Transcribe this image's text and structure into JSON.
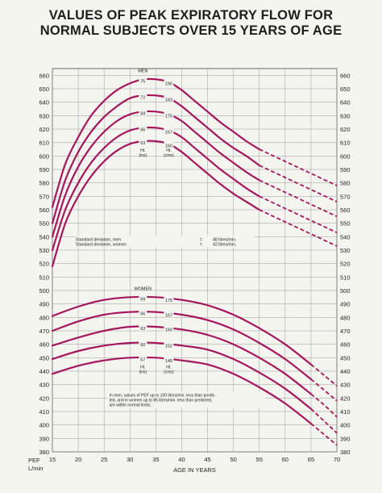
{
  "title_line1": "VALUES OF PEAK EXPIRATORY FLOW FOR",
  "title_line2": "NORMAL SUBJECTS OVER 15 YEARS OF AGE",
  "colors": {
    "curve": "#a4175e",
    "grid": "#9a9a9a",
    "text": "#222222",
    "background": "#f5f5f0"
  },
  "chart_data": {
    "type": "line",
    "xlabel": "AGE IN YEARS",
    "ylabel": [
      "PEF",
      "L/min"
    ],
    "xlim": [
      15,
      70
    ],
    "ylim": [
      380,
      665
    ],
    "x_ticks": [
      15,
      20,
      25,
      30,
      35,
      40,
      45,
      50,
      55,
      60,
      65,
      70
    ],
    "y_ticks": [
      380,
      390,
      400,
      410,
      420,
      430,
      440,
      450,
      460,
      470,
      480,
      490,
      500,
      510,
      520,
      530,
      540,
      550,
      560,
      570,
      580,
      590,
      600,
      610,
      620,
      630,
      640,
      650,
      660
    ],
    "grid": true,
    "groups": [
      {
        "label": "MEN",
        "solid_until_age": 55,
        "height_col_headers": [
          "Ht.",
          "(ins)"
        ],
        "height_col_headers_cm": [
          "Ht.",
          "(cms)"
        ],
        "series": [
          {
            "ht_in": "75",
            "ht_cm": "190",
            "x": [
              15,
              17.5,
              20,
              22.5,
              25,
              27.5,
              30,
              32.5,
              35,
              37.5,
              40,
              42.5,
              45,
              47.5,
              50,
              52.5,
              55,
              60,
              65,
              70
            ],
            "y": [
              562,
              594,
              614,
              630,
              641,
              649,
              654,
              657,
              657,
              655,
              649,
              641,
              633,
              625,
              618,
              611,
              605,
              596,
              587,
              578
            ]
          },
          {
            "ht_in": "72",
            "ht_cm": "183",
            "x": [
              15,
              17.5,
              20,
              22.5,
              25,
              27.5,
              30,
              32.5,
              35,
              37.5,
              40,
              42.5,
              45,
              47.5,
              50,
              52.5,
              55,
              60,
              65,
              70
            ],
            "y": [
              550,
              582,
              603,
              618,
              629,
              637,
              643,
              645,
              645,
              643,
              637,
              629,
              621,
              613,
              606,
              600,
              593,
              584,
              575,
              566
            ]
          },
          {
            "ht_in": "69",
            "ht_cm": "175",
            "x": [
              15,
              17.5,
              20,
              22.5,
              25,
              27.5,
              30,
              32.5,
              35,
              37.5,
              40,
              42.5,
              45,
              47.5,
              50,
              52.5,
              55,
              60,
              65,
              70
            ],
            "y": [
              540,
              571,
              592,
              607,
              618,
              626,
              631,
              633,
              633,
              631,
              626,
              618,
              610,
              602,
              595,
              588,
              582,
              573,
              564,
              555
            ]
          },
          {
            "ht_in": "66",
            "ht_cm": "167",
            "x": [
              15,
              17.5,
              20,
              22.5,
              25,
              27.5,
              30,
              32.5,
              35,
              37.5,
              40,
              42.5,
              45,
              47.5,
              50,
              52.5,
              55,
              60,
              65,
              70
            ],
            "y": [
              530,
              560,
              580,
              595,
              606,
              614,
              619,
              621,
              621,
              619,
              614,
              606,
              598,
              590,
              583,
              576,
              570,
              561,
              552,
              543
            ]
          },
          {
            "ht_in": "63",
            "ht_cm": "160",
            "x": [
              15,
              17.5,
              20,
              22.5,
              25,
              27.5,
              30,
              32.5,
              35,
              37.5,
              40,
              42.5,
              45,
              47.5,
              50,
              52.5,
              55,
              60,
              65,
              70
            ],
            "y": [
              518,
              550,
              570,
              585,
              596,
              604,
              609,
              611,
              611,
              609,
              603,
              595,
              587,
              579,
              572,
              566,
              560,
              551,
              542,
              533
            ]
          }
        ]
      },
      {
        "label": "WOMEN",
        "solid_until_age": 65,
        "height_col_headers": [
          "Ht.",
          "(ins)"
        ],
        "height_col_headers_cm": [
          "Ht.",
          "(cms)"
        ],
        "series": [
          {
            "ht_in": "69",
            "ht_cm": "175",
            "x": [
              15,
              20,
              25,
              30,
              35,
              40,
              45,
              50,
              55,
              60,
              65,
              67.5,
              70
            ],
            "y": [
              481,
              488,
              493,
              495,
              495,
              493,
              489,
              482,
              472,
              460,
              445,
              437,
              429
            ]
          },
          {
            "ht_in": "66",
            "ht_cm": "167",
            "x": [
              15,
              20,
              25,
              30,
              35,
              40,
              45,
              50,
              55,
              60,
              65,
              67.5,
              70
            ],
            "y": [
              470,
              477,
              482,
              484,
              484,
              482,
              478,
              471,
              461,
              449,
              434,
              426,
              418
            ]
          },
          {
            "ht_in": "63",
            "ht_cm": "160",
            "x": [
              15,
              20,
              25,
              30,
              35,
              40,
              45,
              50,
              55,
              60,
              65,
              67.5,
              70
            ],
            "y": [
              459,
              465,
              470,
              473,
              473,
              471,
              467,
              460,
              450,
              438,
              423,
              415,
              406
            ]
          },
          {
            "ht_in": "60",
            "ht_cm": "152",
            "x": [
              15,
              20,
              25,
              30,
              35,
              40,
              45,
              50,
              55,
              60,
              65,
              67.5,
              70
            ],
            "y": [
              449,
              455,
              459,
              461,
              461,
              459,
              456,
              449,
              439,
              427,
              412,
              403,
              394
            ]
          },
          {
            "ht_in": "57",
            "ht_cm": "145",
            "x": [
              15,
              20,
              25,
              30,
              35,
              40,
              45,
              50,
              55,
              60,
              65,
              67.5,
              70
            ],
            "y": [
              438,
              444,
              448,
              450,
              450,
              448,
              445,
              438,
              428,
              416,
              401,
              393,
              385
            ]
          }
        ]
      }
    ],
    "annotations": {
      "sd_men_label": "Standard deviation, men",
      "sd_women_label": "Standard deviation, women",
      "eq": "=",
      "sd_men_value": "48 litres/min.",
      "sd_women_value": "42 litres/min.",
      "note_lines": [
        "In men, values of PEF up to 100 litres/min. less than predic-",
        "ted, and in women up to 85 litres/min. less than predicted,",
        "are within normal limits."
      ]
    }
  }
}
